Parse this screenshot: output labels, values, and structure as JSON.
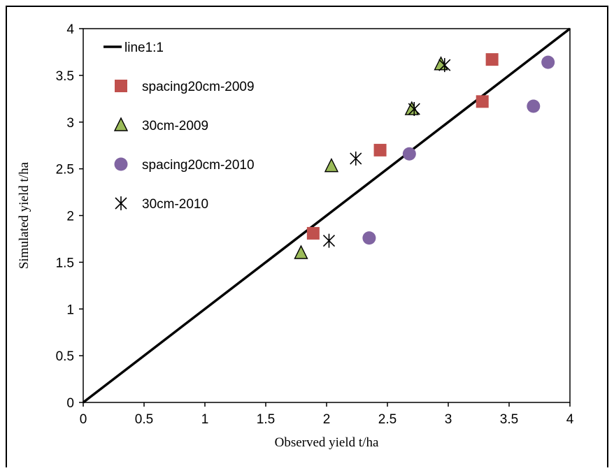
{
  "chart_data": {
    "type": "scatter",
    "title": "",
    "xlabel": "Observed yield t/ha",
    "ylabel": "Simulated yield t/ha",
    "xlim": [
      0,
      4
    ],
    "ylim": [
      0,
      4
    ],
    "xticks": [
      "0",
      "0.5",
      "1",
      "1.5",
      "2",
      "2.5",
      "3",
      "3.5",
      "4"
    ],
    "yticks": [
      "0",
      "0.5",
      "1",
      "1.5",
      "2",
      "2.5",
      "3",
      "3.5",
      "4"
    ],
    "grid": false,
    "legend_position": "top-left",
    "reference_line": {
      "name": "line1:1",
      "x": [
        0,
        4
      ],
      "y": [
        0,
        4
      ],
      "color": "#000000"
    },
    "series": [
      {
        "name": "spacing20cm-2009",
        "marker": "square",
        "color": "#C0504D",
        "points": [
          [
            1.89,
            1.81
          ],
          [
            2.44,
            2.7
          ],
          [
            3.28,
            3.22
          ],
          [
            3.36,
            3.67
          ]
        ]
      },
      {
        "name": "30cm-2009",
        "marker": "triangle",
        "color": "#9BBB59",
        "points": [
          [
            1.79,
            1.6
          ],
          [
            2.04,
            2.53
          ],
          [
            2.7,
            3.14
          ],
          [
            2.94,
            3.62
          ]
        ]
      },
      {
        "name": "spacing20cm-2010",
        "marker": "circle",
        "color": "#8064A2",
        "points": [
          [
            2.35,
            1.76
          ],
          [
            2.68,
            2.66
          ],
          [
            3.7,
            3.17
          ],
          [
            3.82,
            3.64
          ]
        ]
      },
      {
        "name": "30cm-2010",
        "marker": "star",
        "color": "#000000",
        "points": [
          [
            2.02,
            1.73
          ],
          [
            2.24,
            2.61
          ],
          [
            2.72,
            3.14
          ],
          [
            2.97,
            3.61
          ]
        ]
      }
    ]
  }
}
